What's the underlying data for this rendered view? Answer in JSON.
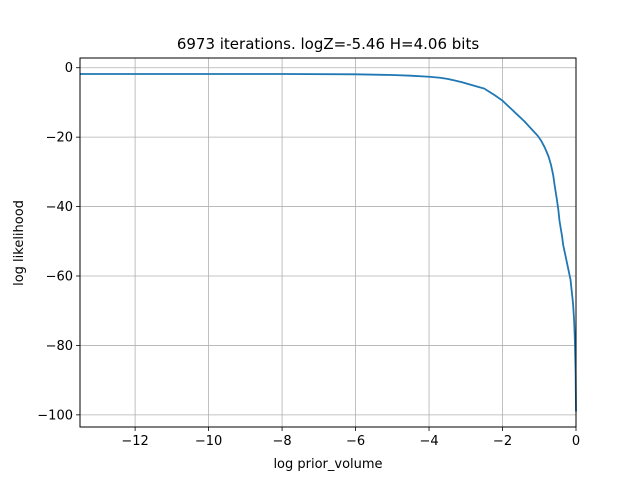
{
  "chart_data": {
    "type": "line",
    "title": "6973 iterations. logZ=-5.46 H=4.06 bits",
    "xlabel": "log prior_volume",
    "ylabel": "log likelihood",
    "xlim": [
      -13.5,
      0
    ],
    "ylim": [
      -103.5,
      2.8
    ],
    "grid": true,
    "xticks": [
      -12,
      -10,
      -8,
      -6,
      -4,
      -2,
      0
    ],
    "xtick_labels": [
      "−12",
      "−10",
      "−8",
      "−6",
      "−4",
      "−2",
      "0"
    ],
    "yticks": [
      0,
      -20,
      -40,
      -60,
      -80,
      -100
    ],
    "ytick_labels": [
      "0",
      "−20",
      "−40",
      "−60",
      "−80",
      "−100"
    ],
    "colors": {
      "line": "#1f77b4",
      "grid": "#b0b0b0"
    },
    "series": [
      {
        "x": [
          -13.5,
          -12,
          -10,
          -8,
          -6,
          -5,
          -4.5,
          -4,
          -3.7,
          -3.5,
          -3.3,
          -3.1,
          -2.9,
          -2.7,
          -2.5,
          -2.35,
          -2.2,
          -2.0,
          -1.8,
          -1.6,
          -1.4,
          -1.2,
          -1.05,
          -0.95,
          -0.85,
          -0.75,
          -0.68,
          -0.62,
          -0.58,
          -0.55,
          -0.52,
          -0.48,
          -0.45,
          -0.42,
          -0.38,
          -0.35,
          -0.3,
          -0.25,
          -0.2,
          -0.15,
          -0.12,
          -0.08,
          -0.05,
          -0.03,
          -0.01,
          0
        ],
        "y": [
          -1.8,
          -1.8,
          -1.8,
          -1.8,
          -1.9,
          -2.1,
          -2.3,
          -2.6,
          -2.9,
          -3.2,
          -3.7,
          -4.2,
          -4.8,
          -5.4,
          -6.0,
          -7.0,
          -8.0,
          -9.5,
          -11.5,
          -13.5,
          -15.5,
          -17.8,
          -19.5,
          -21,
          -23,
          -25.5,
          -28,
          -31,
          -34,
          -36,
          -38,
          -41,
          -44,
          -46,
          -48.5,
          -51,
          -53.5,
          -56,
          -58.5,
          -61,
          -64,
          -68,
          -73,
          -79,
          -88,
          -99
        ]
      }
    ]
  }
}
